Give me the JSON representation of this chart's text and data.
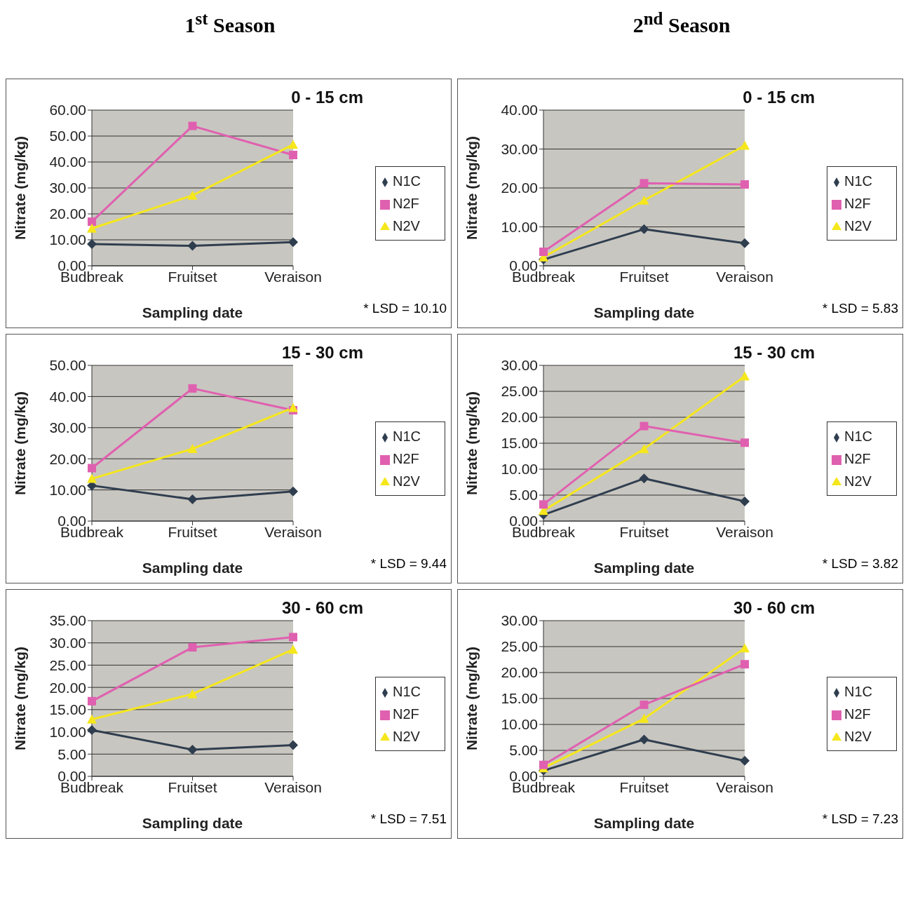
{
  "chart_data": [
    {
      "type": "line",
      "title": "1$^{st}$ Season",
      "subtitle": "0 - 15 cm",
      "xlabel": "Sampling date",
      "ylabel": "Nitrate (mg/kg)",
      "annotations": [
        "* LSD = 10.10"
      ],
      "categories": [
        "Budbreak",
        "Fruitset",
        "Veraison"
      ],
      "ylim": [
        0,
        60
      ],
      "yticks": [
        {
          "value": 0,
          "label": "0.00"
        },
        {
          "value": 10,
          "label": "10.00"
        },
        {
          "value": 20,
          "label": "20.00"
        },
        {
          "value": 30,
          "label": "30.00"
        },
        {
          "value": 40,
          "label": "40.00"
        },
        {
          "value": 50,
          "label": "50.00"
        },
        {
          "value": 60,
          "label": "60.00"
        }
      ],
      "grid": "y",
      "legend": "right",
      "series": [
        {
          "name": "N1C",
          "color": "#2f3e4f",
          "marker": "diamond",
          "values": [
            8.4,
            7.7,
            9.1
          ]
        },
        {
          "name": "N2F",
          "color": "#e060b0",
          "marker": "square",
          "values": [
            17,
            53.9,
            42.7
          ]
        },
        {
          "name": "N2V",
          "color": "#f5e71c",
          "marker": "triangle",
          "values": [
            14.4,
            27.1,
            46.7
          ]
        }
      ]
    },
    {
      "type": "line",
      "title": "2$^{nd}$ Season",
      "subtitle": "0 - 15 cm",
      "xlabel": "Sampling date",
      "ylabel": "Nitrate (mg/kg)",
      "annotations": [
        "* LSD = 5.83"
      ],
      "categories": [
        "Budbreak",
        "Fruitset",
        "Veraison"
      ],
      "ylim": [
        0,
        40
      ],
      "yticks": [
        {
          "value": 0,
          "label": "0.00"
        },
        {
          "value": 10,
          "label": "10.00"
        },
        {
          "value": 20,
          "label": "20.00"
        },
        {
          "value": 30,
          "label": "30.00"
        },
        {
          "value": 40,
          "label": "40.00"
        }
      ],
      "grid": "y",
      "legend": "right",
      "series": [
        {
          "name": "N1C",
          "color": "#2f3e4f",
          "marker": "diamond",
          "values": [
            1.6,
            9.4,
            5.8
          ]
        },
        {
          "name": "N2V",
          "color": "#f5e71c",
          "marker": "triangle",
          "values": [
            2.2,
            16.8,
            30.9
          ]
        },
        {
          "name": "N2F",
          "color": "#e060b0",
          "marker": "square",
          "values": [
            3.6,
            21.2,
            20.9
          ]
        }
      ]
    },
    {
      "type": "line",
      "subtitle": "15 - 30 cm",
      "xlabel": "Sampling date",
      "ylabel": "Nitrate (mg/kg)",
      "annotations": [
        "* LSD = 9.44"
      ],
      "categories": [
        "Budbreak",
        "Fruitset",
        "Veraison"
      ],
      "ylim": [
        0,
        50
      ],
      "yticks": [
        {
          "value": 0,
          "label": "0.00"
        },
        {
          "value": 10,
          "label": "10.00"
        },
        {
          "value": 20,
          "label": "20.00"
        },
        {
          "value": 30,
          "label": "30.00"
        },
        {
          "value": 40,
          "label": "40.00"
        },
        {
          "value": 50,
          "label": "50.00"
        }
      ],
      "grid": "y",
      "legend": "right",
      "series": [
        {
          "name": "N1C",
          "color": "#2f3e4f",
          "marker": "diamond",
          "values": [
            11.4,
            7.0,
            9.5
          ]
        },
        {
          "name": "N2F",
          "color": "#e060b0",
          "marker": "square",
          "values": [
            17,
            42.6,
            35.6
          ]
        },
        {
          "name": "N2V",
          "color": "#f5e71c",
          "marker": "triangle",
          "values": [
            13.6,
            23.2,
            36.4
          ]
        }
      ]
    },
    {
      "type": "line",
      "subtitle": "15 - 30 cm",
      "xlabel": "Sampling date",
      "ylabel": "Nitrate (mg/kg)",
      "annotations": [
        "* LSD = 3.82"
      ],
      "categories": [
        "Budbreak",
        "Fruitset",
        "Veraison"
      ],
      "ylim": [
        0,
        30
      ],
      "yticks": [
        {
          "value": 0,
          "label": "0.00"
        },
        {
          "value": 5,
          "label": "5.00"
        },
        {
          "value": 10,
          "label": "10.00"
        },
        {
          "value": 15,
          "label": "15.00"
        },
        {
          "value": 20,
          "label": "20.00"
        },
        {
          "value": 25,
          "label": "25.00"
        },
        {
          "value": 30,
          "label": "30.00"
        }
      ],
      "grid": "y",
      "legend": "right",
      "series": [
        {
          "name": "N1C",
          "color": "#2f3e4f",
          "marker": "diamond",
          "values": [
            1.2,
            8.2,
            3.8
          ]
        },
        {
          "name": "N2V",
          "color": "#f5e71c",
          "marker": "triangle",
          "values": [
            2.0,
            13.9,
            27.9
          ]
        },
        {
          "name": "N2F",
          "color": "#e060b0",
          "marker": "square",
          "values": [
            3.2,
            18.3,
            15.1
          ]
        }
      ]
    },
    {
      "type": "line",
      "subtitle": "30 - 60 cm",
      "xlabel": "Sampling date",
      "ylabel": "Nitrate (mg/kg)",
      "annotations": [
        "* LSD = 7.51"
      ],
      "categories": [
        "Budbreak",
        "Fruitset",
        "Veraison"
      ],
      "ylim": [
        0,
        35
      ],
      "yticks": [
        {
          "value": 0,
          "label": "0.00"
        },
        {
          "value": 5,
          "label": "5.00"
        },
        {
          "value": 10,
          "label": "10.00"
        },
        {
          "value": 15,
          "label": "15.00"
        },
        {
          "value": 20,
          "label": "20.00"
        },
        {
          "value": 25,
          "label": "25.00"
        },
        {
          "value": 30,
          "label": "30.00"
        },
        {
          "value": 35,
          "label": "35.00"
        }
      ],
      "grid": "y",
      "legend": "right",
      "series": [
        {
          "name": "N1C",
          "color": "#2f3e4f",
          "marker": "diamond",
          "values": [
            10.4,
            6.0,
            7.0
          ]
        },
        {
          "name": "N2F",
          "color": "#e060b0",
          "marker": "square",
          "values": [
            16.9,
            29.0,
            31.3
          ]
        },
        {
          "name": "N2V",
          "color": "#f5e71c",
          "marker": "triangle",
          "values": [
            12.8,
            18.5,
            28.5
          ]
        }
      ]
    },
    {
      "type": "line",
      "subtitle": "30 - 60 cm",
      "xlabel": "Sampling date",
      "ylabel": "Nitrate (mg/kg)",
      "annotations": [
        "* LSD = 7.23"
      ],
      "categories": [
        "Budbreak",
        "Fruitset",
        "Veraison"
      ],
      "ylim": [
        0,
        30
      ],
      "yticks": [
        {
          "value": 0,
          "label": "0.00"
        },
        {
          "value": 5,
          "label": "5.00"
        },
        {
          "value": 10,
          "label": "10.00"
        },
        {
          "value": 15,
          "label": "15.00"
        },
        {
          "value": 20,
          "label": "20.00"
        },
        {
          "value": 25,
          "label": "25.00"
        },
        {
          "value": 30,
          "label": "30.00"
        }
      ],
      "grid": "y",
      "legend": "right",
      "series": [
        {
          "name": "N1C",
          "color": "#2f3e4f",
          "marker": "diamond",
          "values": [
            1.1,
            7.1,
            3.0
          ]
        },
        {
          "name": "N2V",
          "color": "#f5e71c",
          "marker": "triangle",
          "values": [
            1.6,
            11.1,
            24.7
          ]
        },
        {
          "name": "N2F",
          "color": "#e060b0",
          "marker": "square",
          "values": [
            2.2,
            13.8,
            21.6
          ]
        }
      ]
    }
  ]
}
